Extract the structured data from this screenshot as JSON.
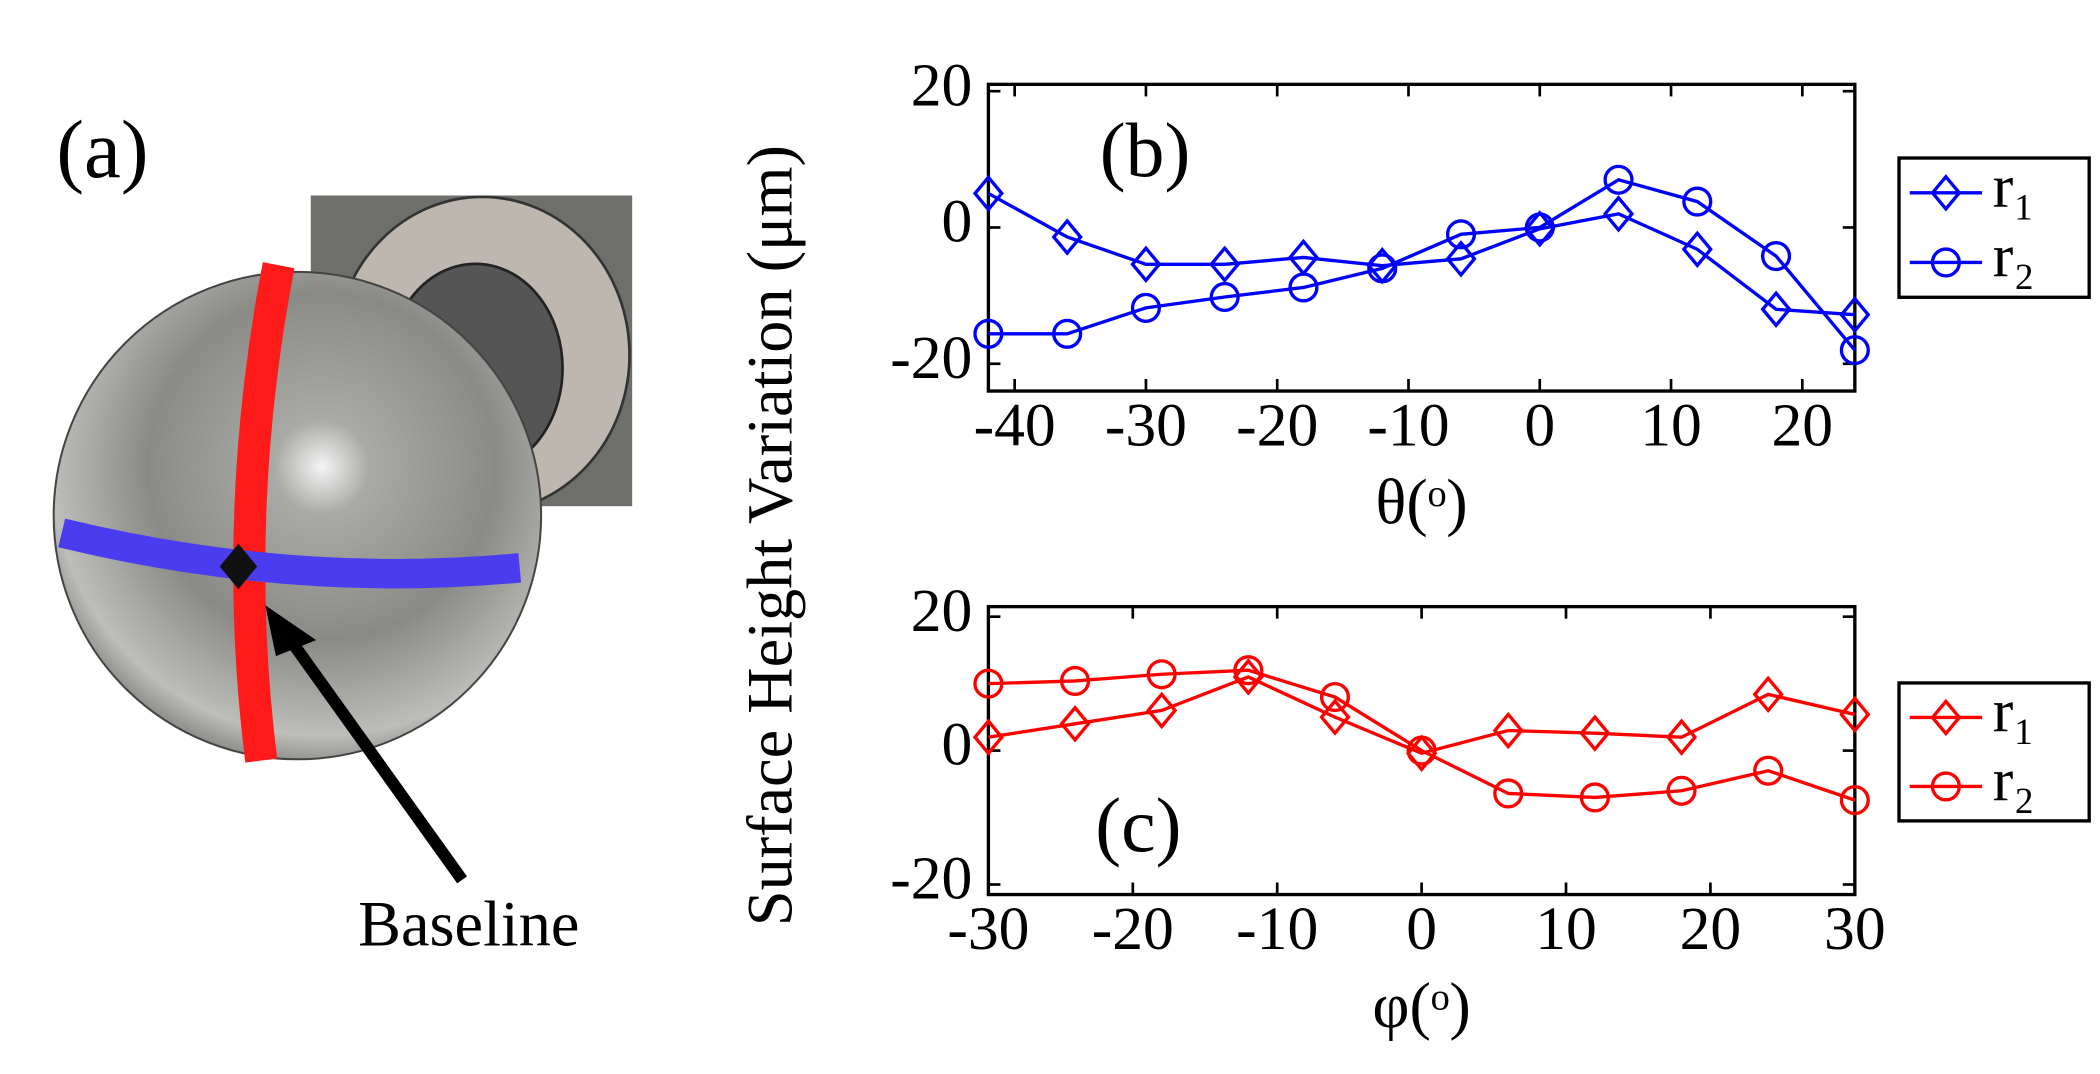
{
  "panel_a": {
    "label": "(a)",
    "annotation": "Baseline"
  },
  "ylabel": "Surface Height Variation (μm)",
  "chart_data": [
    {
      "type": "line",
      "label": "(b)",
      "xlabel": "θ(ᵒ)",
      "x": [
        -42,
        -36,
        -30,
        -24,
        -18,
        -12,
        -6,
        0,
        6,
        12,
        18,
        24
      ],
      "xlim": [
        -42,
        24
      ],
      "xticks": [
        -40,
        -30,
        -20,
        -10,
        0,
        10,
        20
      ],
      "ylim": [
        -24,
        21
      ],
      "yticks": [
        -20,
        0,
        20
      ],
      "series": [
        {
          "name": "r₁",
          "color": "#0000ff",
          "marker": "diamond",
          "values": [
            5,
            -1.4,
            -5.4,
            -5.4,
            -4.4,
            -5.6,
            -4.6,
            -0.2,
            2,
            -3.2,
            -12,
            -12.8
          ]
        },
        {
          "name": "r₂",
          "color": "#0000ff",
          "marker": "circle",
          "values": [
            -15.6,
            -15.6,
            -11.8,
            -10.2,
            -8.8,
            -6,
            -1,
            0,
            7,
            3.8,
            -4.2,
            -18
          ]
        }
      ]
    },
    {
      "type": "line",
      "label": "(c)",
      "xlabel": "φ(ᵒ)",
      "x": [
        -30,
        -24,
        -18,
        -12,
        -6,
        0,
        6,
        12,
        18,
        24,
        30
      ],
      "xlim": [
        -30,
        30
      ],
      "xticks": [
        -30,
        -20,
        -10,
        0,
        10,
        20,
        30
      ],
      "ylim": [
        -21.5,
        21.5
      ],
      "yticks": [
        -20,
        0,
        20
      ],
      "series": [
        {
          "name": "r₁",
          "color": "#ff0000",
          "marker": "diamond",
          "values": [
            2,
            4,
            6,
            11,
            5,
            -0.4,
            3,
            2.6,
            2,
            8.4,
            5.4
          ]
        },
        {
          "name": "r₂",
          "color": "#ff0000",
          "marker": "circle",
          "values": [
            10,
            10.4,
            11.4,
            12,
            8,
            0,
            -6.4,
            -7,
            -6,
            -3,
            -7.4
          ]
        }
      ]
    }
  ]
}
